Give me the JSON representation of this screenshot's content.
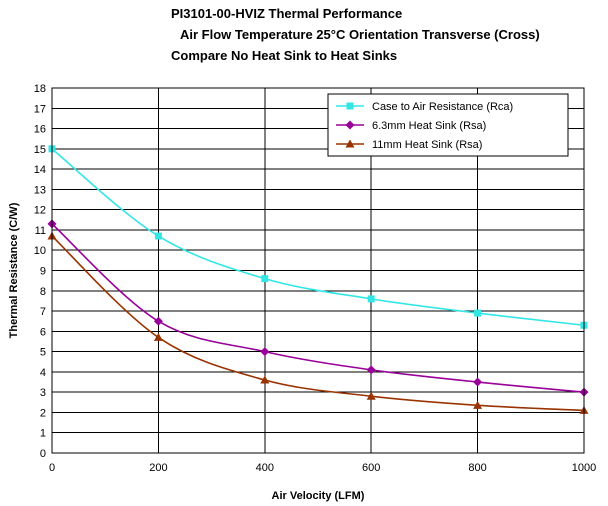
{
  "chart_data": {
    "type": "line",
    "title_lines": [
      "PI3101-00-HVIZ Thermal Performance",
      "Air Flow Temperature 25°C Orientation Transverse (Cross)",
      "Compare No Heat Sink to Heat Sinks"
    ],
    "xlabel": "Air Velocity (LFM)",
    "ylabel": "Thermal Resistance (C/W)",
    "x": [
      0,
      200,
      400,
      600,
      800,
      1000
    ],
    "xlim": [
      0,
      1000
    ],
    "ylim": [
      0,
      18
    ],
    "x_ticks": [
      0,
      200,
      400,
      600,
      800,
      1000
    ],
    "y_ticks": [
      0,
      1,
      2,
      3,
      4,
      5,
      6,
      7,
      8,
      9,
      10,
      11,
      12,
      13,
      14,
      15,
      16,
      17,
      18
    ],
    "grid": true,
    "legend_position": "top-right",
    "series": [
      {
        "name": "Case to Air Resistance (Rca)",
        "color": "#33e6e6",
        "marker": "square",
        "values": [
          15.0,
          10.7,
          8.6,
          7.6,
          6.9,
          6.3
        ]
      },
      {
        "name": "6.3mm Heat Sink (Rsa)",
        "color": "#990099",
        "marker": "diamond",
        "values": [
          11.3,
          6.5,
          5.0,
          4.1,
          3.5,
          3.0
        ]
      },
      {
        "name": "11mm Heat Sink (Rsa)",
        "color": "#993300",
        "marker": "triangle",
        "values": [
          10.7,
          5.7,
          3.6,
          2.8,
          2.35,
          2.1
        ]
      }
    ]
  }
}
